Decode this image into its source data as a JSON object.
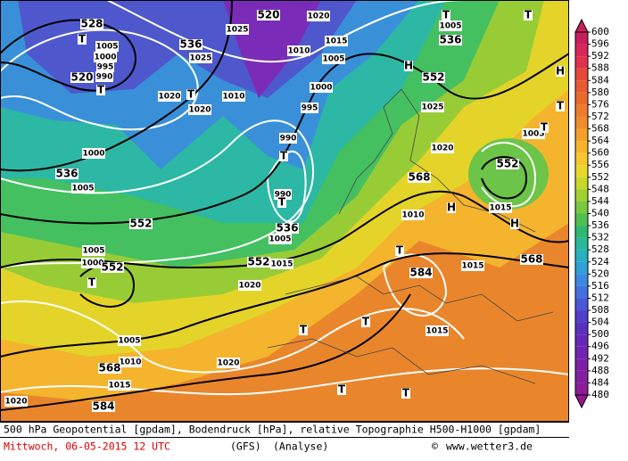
{
  "map": {
    "labels": [
      "528",
      "T",
      "1005",
      "1000",
      "995",
      "990",
      "520",
      "T",
      "536",
      "1025",
      "1020",
      "T",
      "1020",
      "1010",
      "1025",
      "520",
      "1020",
      "1010",
      "1015",
      "1005",
      "1000",
      "995",
      "990",
      "T",
      "990",
      "T",
      "536",
      "1005",
      "552",
      "1015",
      "552",
      "H",
      "1025",
      "1020",
      "536",
      "T",
      "1005",
      "T",
      "1005",
      "H",
      "T",
      "T",
      "552",
      "1015",
      "H",
      "H",
      "568",
      "1010",
      "T",
      "584",
      "1015",
      "568",
      "1015",
      "T",
      "T",
      "T",
      "T",
      "536",
      "1005",
      "1000",
      "552",
      "1005",
      "1000",
      "552",
      "T",
      "1020",
      "1005",
      "1010",
      "568",
      "1015",
      "1020",
      "1020",
      "584"
    ]
  },
  "legend": {
    "values": [
      "600",
      "596",
      "592",
      "588",
      "584",
      "580",
      "576",
      "572",
      "568",
      "564",
      "560",
      "556",
      "552",
      "548",
      "544",
      "540",
      "536",
      "532",
      "528",
      "524",
      "520",
      "516",
      "512",
      "508",
      "504",
      "500",
      "496",
      "492",
      "488",
      "484",
      "480"
    ],
    "colors": [
      "#c81e5a",
      "#d8285a",
      "#e0304a",
      "#e84838",
      "#e85a30",
      "#ea6a2c",
      "#ee7c2c",
      "#f08c2c",
      "#f4a02c",
      "#f6b42c",
      "#f4c82c",
      "#e8d82c",
      "#c8d828",
      "#a0d030",
      "#78c840",
      "#50c050",
      "#30b870",
      "#28b898",
      "#28b0c0",
      "#30a0d8",
      "#3c88e0",
      "#4470e0",
      "#4a58d8",
      "#5040cc",
      "#5830c0",
      "#6428b8",
      "#7024b0",
      "#7c20a8",
      "#8420a0",
      "#8c1c98",
      "#941890"
    ]
  },
  "footer": {
    "line1": "500 hPa Geopotential [gpdam], Bodendruck [hPa], relative Topographie H500-H1000 [gpdam]",
    "date": "Mittwoch, 06-05-2015  12 UTC",
    "model": "(GFS)",
    "run": "(Analyse)",
    "copyright": "©",
    "site": "www.wetter3.de"
  }
}
